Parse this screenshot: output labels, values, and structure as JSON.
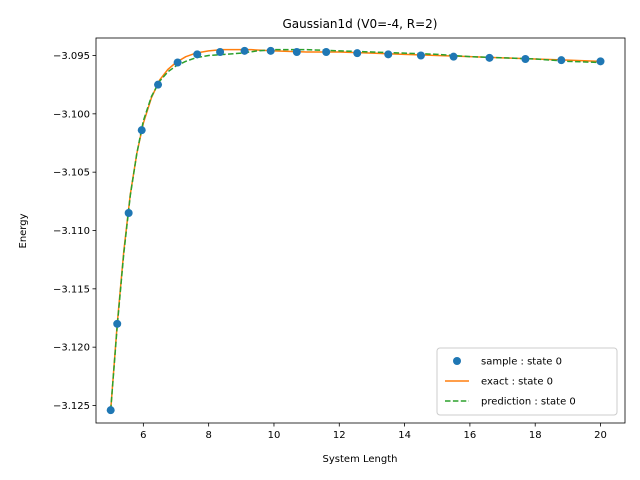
{
  "chart_data": {
    "type": "line",
    "title": "Gaussian1d (V0=-4, R=2)",
    "xlabel": "System Length",
    "ylabel": "Energy",
    "xlim": [
      4.55,
      20.75
    ],
    "ylim": [
      -3.1265,
      -3.0935
    ],
    "x_ticks": [
      6,
      8,
      10,
      12,
      14,
      16,
      18,
      20
    ],
    "x_tick_labels": [
      "6",
      "8",
      "10",
      "12",
      "14",
      "16",
      "18",
      "20"
    ],
    "y_ticks": [
      -3.125,
      -3.12,
      -3.115,
      -3.11,
      -3.105,
      -3.1,
      -3.095
    ],
    "y_tick_labels": [
      "−3.125",
      "−3.120",
      "−3.115",
      "−3.110",
      "−3.105",
      "−3.100",
      "−3.095"
    ],
    "legend_position": "lower-right",
    "grid": false,
    "series": [
      {
        "name": "sample : state 0",
        "kind": "scatter",
        "color": "#1f77b4",
        "x": [
          5.0,
          5.2,
          5.55,
          5.95,
          6.45,
          7.05,
          7.65,
          8.35,
          9.1,
          9.9,
          10.7,
          11.6,
          12.55,
          13.5,
          14.5,
          15.5,
          16.6,
          17.7,
          18.8,
          20.0
        ],
        "y": [
          -3.1254,
          -3.118,
          -3.1085,
          -3.1014,
          -3.0975,
          -3.0956,
          -3.0949,
          -3.0947,
          -3.0946,
          -3.0946,
          -3.0947,
          -3.0947,
          -3.0948,
          -3.0949,
          -3.095,
          -3.0951,
          -3.0952,
          -3.0953,
          -3.0954,
          -3.0955
        ]
      },
      {
        "name": "exact : state 0",
        "kind": "line",
        "color": "#ff7f0e",
        "dash": "solid",
        "x": [
          5.0,
          5.2,
          5.4,
          5.6,
          5.8,
          6.0,
          6.25,
          6.5,
          6.75,
          7.0,
          7.3,
          7.6,
          8.0,
          8.4,
          8.8,
          9.3,
          10.0,
          11.0,
          12.0,
          13.0,
          14.0,
          15.0,
          16.0,
          17.0,
          18.0,
          19.0,
          20.0
        ],
        "y": [
          -3.1254,
          -3.118,
          -3.1118,
          -3.1069,
          -3.1034,
          -3.1008,
          -3.0986,
          -3.0971,
          -3.0962,
          -3.0956,
          -3.0951,
          -3.0948,
          -3.0946,
          -3.0945,
          -3.0945,
          -3.0945,
          -3.0946,
          -3.0947,
          -3.0947,
          -3.0948,
          -3.0949,
          -3.095,
          -3.0951,
          -3.0952,
          -3.0953,
          -3.0954,
          -3.0955
        ]
      },
      {
        "name": "prediction : state 0",
        "kind": "line",
        "color": "#2ca02c",
        "dash": "dashed",
        "x": [
          5.0,
          5.2,
          5.4,
          5.6,
          5.8,
          6.0,
          6.25,
          6.5,
          6.75,
          7.0,
          7.3,
          7.6,
          8.0,
          8.5,
          9.0,
          9.5,
          10.0,
          11.0,
          12.0,
          13.0,
          14.0,
          15.0,
          16.0,
          17.0,
          18.0,
          19.0,
          20.0
        ],
        "y": [
          -3.1254,
          -3.1182,
          -3.112,
          -3.107,
          -3.1034,
          -3.1006,
          -3.0985,
          -3.0972,
          -3.0964,
          -3.0959,
          -3.0955,
          -3.0952,
          -3.095,
          -3.0949,
          -3.0948,
          -3.0946,
          -3.0945,
          -3.0945,
          -3.0946,
          -3.0947,
          -3.0948,
          -3.0949,
          -3.0951,
          -3.0952,
          -3.0953,
          -3.0955,
          -3.0956
        ]
      }
    ]
  }
}
